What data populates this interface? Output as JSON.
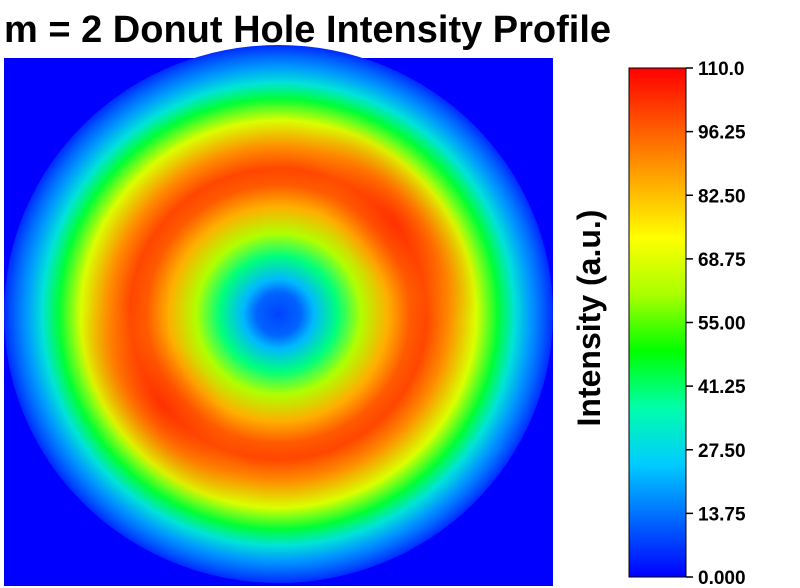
{
  "chart_data": {
    "type": "heatmap",
    "title": "m = 2 Donut Hole Intensity Profile",
    "colorbar": {
      "label": "Intensity (a.u.)",
      "min": 0.0,
      "max": 110.0,
      "ticks": [
        110.0,
        96.25,
        82.5,
        68.75,
        55.0,
        41.25,
        27.5,
        13.75,
        0.0
      ],
      "tick_labels": [
        "110.0",
        "96.25",
        "82.50",
        "68.75",
        "55.00",
        "41.25",
        "27.50",
        "13.75",
        "0.000"
      ],
      "colormap": [
        "#0000ff",
        "#0066ff",
        "#00ccff",
        "#00ffaa",
        "#00ff00",
        "#aaff00",
        "#ffff00",
        "#ffaa00",
        "#ff5500",
        "#ff0000"
      ]
    },
    "field": {
      "background_intensity": 5,
      "rings": [
        {
          "name": "inner",
          "radius_fraction": 0.215,
          "peak_intensity": 40
        },
        {
          "name": "main",
          "radius_fraction": 0.54,
          "peak_intensity": 100
        }
      ],
      "hole_intensity": 8,
      "outer_dark_intensity": 12
    }
  }
}
